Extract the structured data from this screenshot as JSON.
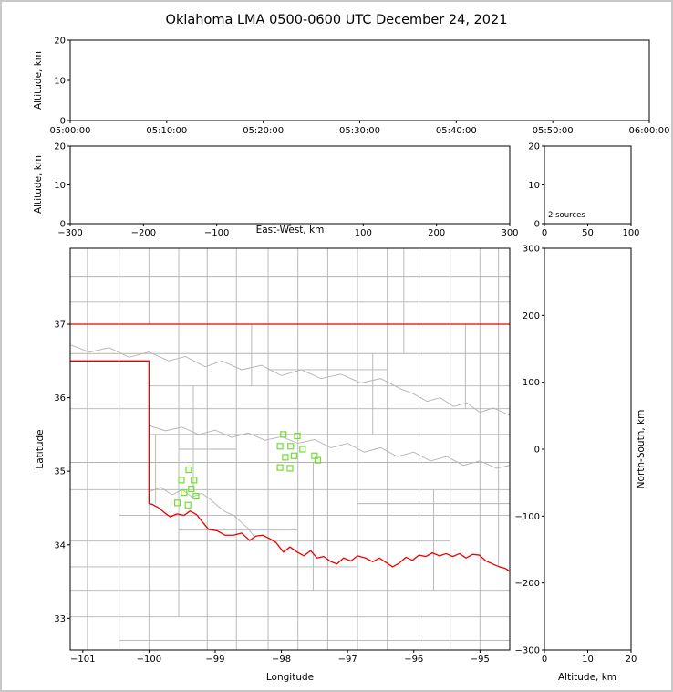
{
  "title": "Oklahoma LMA 0500-0600 UTC December 24, 2021",
  "colors": {
    "state_boundary": "#ee0000",
    "county_lines": "#b3b3b3",
    "river_lines": "#b3b3b3",
    "source_marker": "#6fe02e",
    "axis": "#000000",
    "figure_border": "#c8c8c8"
  },
  "labels": {
    "altitude_axis": "Altitude, km",
    "east_west_axis": "East-West, km",
    "longitude_axis": "Longitude",
    "latitude_axis": "Latitude",
    "north_south_axis": "North-South, km"
  },
  "chart_data": [
    {
      "id": "time_height",
      "type": "scatter",
      "ylabel": "Altitude, km",
      "xtick_labels": [
        "05:00:00",
        "05:10:00",
        "05:20:00",
        "05:30:00",
        "05:40:00",
        "05:50:00",
        "06:00:00"
      ],
      "ylim": [
        0,
        20
      ],
      "yticks": [
        0,
        10,
        20
      ],
      "points": []
    },
    {
      "id": "ew_height",
      "type": "scatter",
      "xlabel": "East-West, km",
      "ylabel": "Altitude, km",
      "xlim": [
        -300,
        300
      ],
      "xticks": [
        -300,
        -200,
        -100,
        0,
        100,
        200,
        300
      ],
      "hidden_tick_labels": [
        0
      ],
      "ylim": [
        0,
        20
      ],
      "yticks": [
        0,
        10,
        20
      ],
      "points": []
    },
    {
      "id": "alt_histogram",
      "type": "line",
      "xlim": [
        0,
        100
      ],
      "xticks": [
        0,
        50,
        100
      ],
      "ylim": [
        0,
        20
      ],
      "yticks": [
        0,
        10,
        20
      ],
      "annotation": "2 sources",
      "points": []
    },
    {
      "id": "plan_view",
      "type": "scatter",
      "xlabel": "Longitude",
      "ylabel": "Latitude",
      "xlim": [
        -101.19,
        -94.55
      ],
      "ylim": [
        32.57,
        38.03
      ],
      "xticks": [
        -101,
        -100,
        -99,
        -98,
        -97,
        -96,
        -95
      ],
      "yticks": [
        33,
        34,
        35,
        36,
        37
      ],
      "sources": [
        [
          -99.4,
          35.02
        ],
        [
          -99.51,
          34.88
        ],
        [
          -99.32,
          34.88
        ],
        [
          -99.47,
          34.71
        ],
        [
          -99.36,
          34.76
        ],
        [
          -99.57,
          34.57
        ],
        [
          -99.41,
          34.54
        ],
        [
          -99.29,
          34.66
        ],
        [
          -97.97,
          35.5
        ],
        [
          -97.76,
          35.48
        ],
        [
          -98.02,
          35.34
        ],
        [
          -97.86,
          35.34
        ],
        [
          -97.68,
          35.3
        ],
        [
          -97.94,
          35.19
        ],
        [
          -97.81,
          35.21
        ],
        [
          -98.02,
          35.05
        ],
        [
          -97.87,
          35.04
        ],
        [
          -97.5,
          35.21
        ],
        [
          -97.45,
          35.15
        ]
      ],
      "state_boundary": [
        [
          [
            -101.19,
            37.0
          ],
          [
            -94.55,
            37.0
          ]
        ],
        [
          [
            -101.19,
            36.5
          ],
          [
            -100.0,
            36.5
          ],
          [
            -100.0,
            34.56
          ],
          [
            -99.95,
            34.55
          ],
          [
            -99.85,
            34.5
          ],
          [
            -99.77,
            34.44
          ],
          [
            -99.68,
            34.38
          ],
          [
            -99.58,
            34.42
          ],
          [
            -99.47,
            34.4
          ],
          [
            -99.38,
            34.46
          ],
          [
            -99.28,
            34.41
          ],
          [
            -99.21,
            34.33
          ],
          [
            -99.1,
            34.21
          ],
          [
            -98.97,
            34.19
          ],
          [
            -98.85,
            34.13
          ],
          [
            -98.72,
            34.13
          ],
          [
            -98.6,
            34.16
          ],
          [
            -98.48,
            34.06
          ],
          [
            -98.38,
            34.12
          ],
          [
            -98.28,
            34.13
          ],
          [
            -98.17,
            34.08
          ],
          [
            -98.08,
            34.03
          ],
          [
            -97.97,
            33.9
          ],
          [
            -97.87,
            33.97
          ],
          [
            -97.76,
            33.9
          ],
          [
            -97.66,
            33.85
          ],
          [
            -97.56,
            33.92
          ],
          [
            -97.46,
            33.82
          ],
          [
            -97.36,
            33.84
          ],
          [
            -97.25,
            33.77
          ],
          [
            -97.16,
            33.74
          ],
          [
            -97.06,
            33.82
          ],
          [
            -96.95,
            33.78
          ],
          [
            -96.85,
            33.85
          ],
          [
            -96.73,
            33.82
          ],
          [
            -96.62,
            33.77
          ],
          [
            -96.52,
            33.82
          ],
          [
            -96.42,
            33.76
          ],
          [
            -96.32,
            33.7
          ],
          [
            -96.22,
            33.75
          ],
          [
            -96.12,
            33.83
          ],
          [
            -96.02,
            33.79
          ],
          [
            -95.92,
            33.86
          ],
          [
            -95.82,
            33.84
          ],
          [
            -95.72,
            33.89
          ],
          [
            -95.61,
            33.85
          ],
          [
            -95.51,
            33.88
          ],
          [
            -95.41,
            33.84
          ],
          [
            -95.31,
            33.88
          ],
          [
            -95.21,
            33.82
          ],
          [
            -95.11,
            33.87
          ],
          [
            -95.01,
            33.86
          ],
          [
            -94.91,
            33.78
          ],
          [
            -94.81,
            33.74
          ],
          [
            -94.71,
            33.7
          ],
          [
            -94.62,
            33.68
          ],
          [
            -94.55,
            33.64
          ]
        ]
      ],
      "county_v": [
        [
          -100.93,
          32.57,
          38.03
        ],
        [
          -100.45,
          32.57,
          38.03
        ],
        [
          -100.0,
          37.0,
          38.03
        ],
        [
          -100.0,
          32.57,
          34.56
        ],
        [
          -99.55,
          33.02,
          38.03
        ],
        [
          -99.12,
          32.57,
          38.03
        ],
        [
          -98.68,
          32.57,
          38.03
        ],
        [
          -98.2,
          32.57,
          38.03
        ],
        [
          -97.75,
          32.57,
          38.03
        ],
        [
          -97.3,
          32.57,
          38.03
        ],
        [
          -96.85,
          32.57,
          38.03
        ],
        [
          -96.4,
          32.57,
          38.03
        ],
        [
          -95.92,
          32.57,
          38.03
        ],
        [
          -95.45,
          32.57,
          38.03
        ],
        [
          -95.0,
          32.57,
          38.03
        ],
        [
          -94.72,
          33.7,
          38.03
        ],
        [
          -99.9,
          34.56,
          35.5
        ],
        [
          -99.33,
          34.75,
          36.16
        ],
        [
          -98.45,
          36.16,
          37.0
        ],
        [
          -97.52,
          33.38,
          35.12
        ],
        [
          -96.62,
          35.5,
          36.6
        ],
        [
          -95.7,
          33.38,
          34.75
        ],
        [
          -95.22,
          35.85,
          37.0
        ],
        [
          -96.15,
          36.6,
          38.03
        ]
      ],
      "county_h": [
        [
          37.65,
          -101.19,
          -94.55
        ],
        [
          37.3,
          -101.19,
          -94.55
        ],
        [
          36.6,
          -101.19,
          -94.55
        ],
        [
          36.16,
          -100.0,
          -94.55
        ],
        [
          35.85,
          -101.19,
          -94.55
        ],
        [
          35.5,
          -100.0,
          -94.55
        ],
        [
          35.12,
          -101.19,
          -94.55
        ],
        [
          34.75,
          -101.19,
          -94.55
        ],
        [
          34.4,
          -100.45,
          -94.55
        ],
        [
          34.05,
          -101.19,
          -95.45
        ],
        [
          33.7,
          -101.19,
          -96.85
        ],
        [
          33.38,
          -101.19,
          -94.55
        ],
        [
          33.02,
          -101.19,
          -94.55
        ],
        [
          32.7,
          -100.45,
          -94.55
        ],
        [
          36.38,
          -98.2,
          -96.4
        ],
        [
          35.3,
          -99.55,
          -98.68
        ],
        [
          34.56,
          -96.85,
          -94.55
        ],
        [
          34.2,
          -99.55,
          -97.75
        ]
      ],
      "rivers": [
        [
          [
            -101.19,
            36.72
          ],
          [
            -100.9,
            36.62
          ],
          [
            -100.6,
            36.68
          ],
          [
            -100.3,
            36.55
          ],
          [
            -100.0,
            36.62
          ],
          [
            -99.7,
            36.5
          ],
          [
            -99.45,
            36.56
          ],
          [
            -99.15,
            36.42
          ],
          [
            -98.9,
            36.5
          ],
          [
            -98.6,
            36.38
          ],
          [
            -98.3,
            36.44
          ],
          [
            -98.0,
            36.3
          ],
          [
            -97.7,
            36.38
          ],
          [
            -97.4,
            36.26
          ],
          [
            -97.1,
            36.32
          ],
          [
            -96.8,
            36.2
          ],
          [
            -96.5,
            36.26
          ],
          [
            -96.2,
            36.12
          ],
          [
            -96.0,
            36.05
          ]
        ],
        [
          [
            -100.0,
            35.62
          ],
          [
            -99.75,
            35.55
          ],
          [
            -99.5,
            35.6
          ],
          [
            -99.25,
            35.5
          ],
          [
            -99.0,
            35.56
          ],
          [
            -98.75,
            35.46
          ],
          [
            -98.5,
            35.52
          ],
          [
            -98.25,
            35.42
          ],
          [
            -98.0,
            35.47
          ],
          [
            -97.75,
            35.38
          ],
          [
            -97.5,
            35.43
          ],
          [
            -97.25,
            35.32
          ],
          [
            -97.0,
            35.38
          ],
          [
            -96.75,
            35.26
          ],
          [
            -96.5,
            35.32
          ],
          [
            -96.25,
            35.2
          ],
          [
            -96.0,
            35.26
          ],
          [
            -95.75,
            35.14
          ],
          [
            -95.5,
            35.2
          ],
          [
            -95.25,
            35.08
          ],
          [
            -95.0,
            35.14
          ],
          [
            -94.75,
            35.04
          ],
          [
            -94.55,
            35.08
          ]
        ],
        [
          [
            -96.0,
            36.05
          ],
          [
            -95.8,
            35.95
          ],
          [
            -95.6,
            36.0
          ],
          [
            -95.4,
            35.88
          ],
          [
            -95.2,
            35.93
          ],
          [
            -95.0,
            35.8
          ],
          [
            -94.8,
            35.86
          ],
          [
            -94.55,
            35.76
          ]
        ],
        [
          [
            -100.0,
            34.72
          ],
          [
            -99.82,
            34.78
          ],
          [
            -99.65,
            34.68
          ],
          [
            -99.5,
            34.75
          ],
          [
            -99.35,
            34.65
          ],
          [
            -99.2,
            34.7
          ],
          [
            -99.05,
            34.6
          ],
          [
            -98.95,
            34.52
          ],
          [
            -98.85,
            34.45
          ],
          [
            -98.72,
            34.4
          ],
          [
            -98.6,
            34.3
          ],
          [
            -98.5,
            34.22
          ],
          [
            -98.42,
            34.12
          ]
        ]
      ]
    },
    {
      "id": "ns_height",
      "type": "scatter",
      "xlabel": "Altitude, km",
      "ylabel": "North-South, km",
      "xlim": [
        0,
        20
      ],
      "xticks": [
        0,
        10,
        20
      ],
      "ylim": [
        -300,
        300
      ],
      "yticks": [
        300,
        200,
        100,
        0,
        -100,
        -200,
        -300
      ],
      "points": []
    }
  ]
}
